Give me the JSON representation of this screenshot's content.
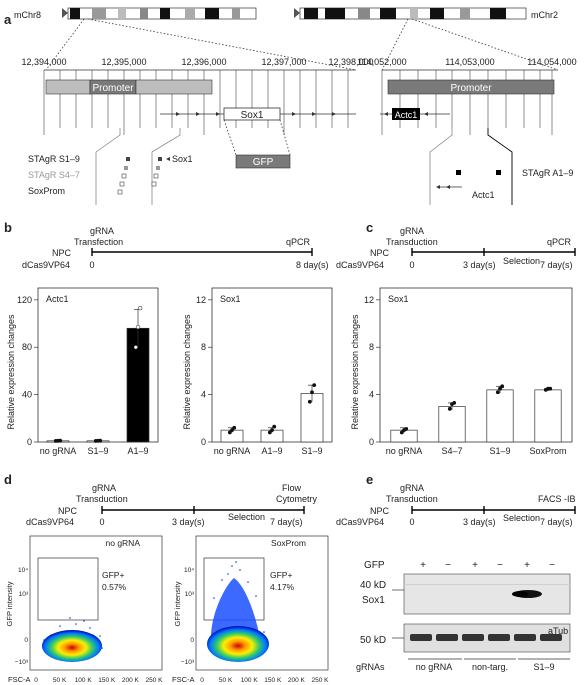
{
  "panels": {
    "a": {
      "label": "a",
      "chr_left": "mChr8",
      "chr_right": "mChr2",
      "left_coords": [
        "12,394,000",
        "12,395,000",
        "12,396,000",
        "12,397,000",
        "12,398,000"
      ],
      "right_coords": [
        "114,052,000",
        "114,053,000",
        "114,054,000"
      ],
      "promoter_left": "Promoter",
      "promoter_right": "Promoter",
      "sox1_gene": "Sox1",
      "actc1_gene": "Actc1",
      "gfp": "GFP",
      "legend_s19": "STAgR S1–9",
      "legend_s47": "STAgR S4–7",
      "legend_soxprom": "SoxProm",
      "sox1_pointer": "Sox1",
      "actc1_small": "Actc1",
      "stagr_a19": "STAgR A1–9"
    },
    "b": {
      "label": "b",
      "npc": "NPC",
      "dcas": "dCas9VP64",
      "grna": "gRNA",
      "transfection": "Transfection",
      "qpcr": "qPCR",
      "t0": "0",
      "t_end": "8 day(s)",
      "ylabel": "Relative expression changes",
      "chart_actc1_title": "Actc1",
      "chart_sox1_title": "Sox1"
    },
    "c": {
      "label": "c",
      "npc": "NPC",
      "dcas": "dCas9VP64",
      "grna": "gRNA",
      "transduction": "Transduction",
      "qpcr": "qPCR",
      "t0": "0",
      "t_mid": "3 day(s)",
      "selection": "Selection",
      "t_end": "7 day(s)",
      "ylabel": "Relative expression changes",
      "chart_title": "Sox1"
    },
    "d": {
      "label": "d",
      "npc": "NPC",
      "dcas": "dCas9VP64",
      "grna": "gRNA",
      "transduction": "Transduction",
      "flow": "Flow",
      "cytometry": "Cytometry",
      "t0": "0",
      "t_mid": "3 day(s)",
      "selection": "Selection",
      "t_end": "7 day(s)",
      "plot1_title": "no gRNA",
      "plot1_gate": "GFP+",
      "plot1_pct": "0.57%",
      "plot2_title": "SoxProm",
      "plot2_gate": "GFP+",
      "plot2_pct": "4.17%",
      "ylabel": "GFP intensity",
      "xlabel": "FSC-A",
      "xticks": [
        "0",
        "50 K",
        "100 K",
        "150 K",
        "200 K",
        "250 K"
      ],
      "yticks": [
        "10⁴",
        "10³",
        "0",
        "−10³"
      ]
    },
    "e": {
      "label": "e",
      "npc": "NPC",
      "dcas": "dCas9VP64",
      "grna": "gRNA",
      "transduction": "Transduction",
      "facs": "FACS -IB",
      "t0": "0",
      "t_mid": "3 day(s)",
      "selection": "Selection",
      "t_end": "7 day(s)",
      "gfp_label": "GFP",
      "gfp_signs": [
        "+",
        "−",
        "+",
        "−",
        "+",
        "−"
      ],
      "kd40": "40 kD",
      "sox1": "Sox1",
      "kd50": "50 kD",
      "atub": "aTub",
      "grnas_label": "gRNAs",
      "groups": [
        "no gRNA",
        "non-targ.",
        "S1–9"
      ]
    }
  },
  "chart_data": [
    {
      "type": "bar",
      "title": "Actc1",
      "ylabel": "Relative expression changes",
      "categories": [
        "no gRNA",
        "S1–9",
        "A1–9"
      ],
      "values": [
        1,
        1,
        96
      ],
      "error": [
        0.5,
        0.5,
        16
      ],
      "points": [
        [
          0.9,
          1.0,
          1.1
        ],
        [
          0.9,
          1.0,
          1.1
        ],
        [
          80,
          97,
          113
        ]
      ],
      "yticks": [
        0,
        40,
        80,
        120
      ],
      "ylim": [
        0,
        130
      ],
      "bar_colors": [
        "#ffffff",
        "#ffffff",
        "#000000"
      ]
    },
    {
      "type": "bar",
      "title": "Sox1",
      "ylabel": "Relative expression changes",
      "categories": [
        "no gRNA",
        "A1–9",
        "S1–9"
      ],
      "values": [
        1,
        1,
        4.1
      ],
      "error": [
        0.2,
        0.2,
        0.7
      ],
      "points": [
        [
          0.8,
          1.0,
          1.2
        ],
        [
          0.8,
          1.0,
          1.3
        ],
        [
          3.4,
          4.2,
          4.8
        ]
      ],
      "yticks": [
        0,
        4,
        8,
        12
      ],
      "ylim": [
        0,
        13
      ],
      "bar_colors": [
        "#ffffff",
        "#ffffff",
        "#ffffff"
      ]
    },
    {
      "type": "bar",
      "title": "Sox1",
      "ylabel": "Relative expression changes",
      "categories": [
        "no gRNA",
        "S4–7",
        "S1–9",
        "SoxProm"
      ],
      "values": [
        1,
        3.0,
        4.4,
        4.4
      ],
      "error": [
        0.2,
        0.3,
        0.3,
        0.1
      ],
      "points": [
        [
          0.8,
          1.0,
          1.1
        ],
        [
          2.8,
          3.2,
          3.3
        ],
        [
          4.2,
          4.5,
          4.7
        ],
        [
          4.4,
          4.5,
          4.5
        ]
      ],
      "yticks": [
        0,
        4,
        8,
        12
      ],
      "ylim": [
        0,
        13
      ],
      "bar_colors": [
        "#ffffff",
        "#ffffff",
        "#ffffff",
        "#ffffff"
      ]
    }
  ]
}
